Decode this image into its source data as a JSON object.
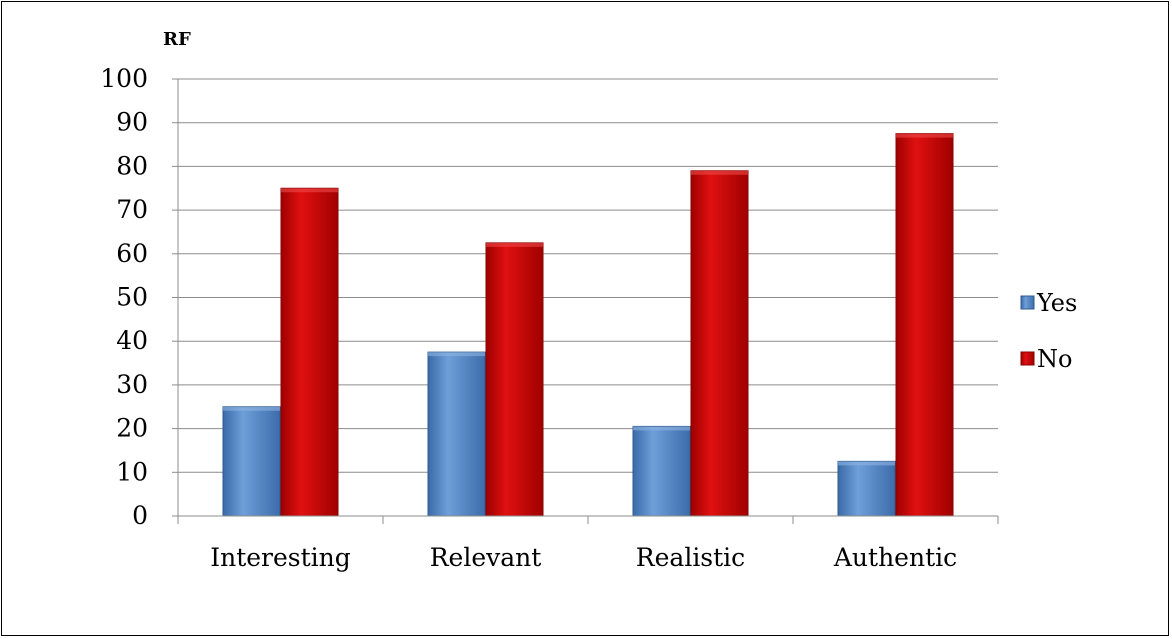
{
  "chart_data": {
    "type": "bar",
    "title": "",
    "xlabel": "",
    "ylabel": "RF",
    "ylim": [
      0,
      100
    ],
    "yticks": [
      0,
      10,
      20,
      30,
      40,
      50,
      60,
      70,
      80,
      90,
      100
    ],
    "grid": true,
    "legend_position": "right",
    "categories": [
      "Interesting",
      "Relevant",
      "Realistic",
      "Authentic"
    ],
    "series": [
      {
        "name": "Yes",
        "color": "#4F81BD",
        "values": [
          25,
          37.5,
          20.5,
          12.5
        ]
      },
      {
        "name": "No",
        "color": "#C00000",
        "values": [
          75,
          62.5,
          79,
          87.5
        ]
      }
    ]
  }
}
